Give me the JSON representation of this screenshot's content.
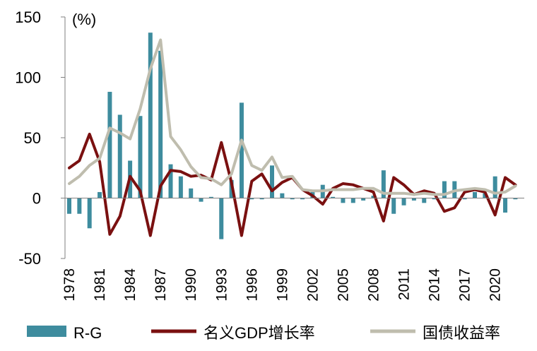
{
  "chart_data": {
    "type": "bar+line",
    "unit_label": "(%)",
    "ylim": [
      -50,
      150
    ],
    "yticks": [
      "150",
      "100",
      "50",
      "0",
      "-50"
    ],
    "ytick_values": [
      150,
      100,
      50,
      0,
      -50
    ],
    "x": [
      1978,
      1979,
      1980,
      1981,
      1982,
      1983,
      1984,
      1985,
      1986,
      1987,
      1988,
      1989,
      1990,
      1991,
      1992,
      1993,
      1994,
      1995,
      1996,
      1997,
      1998,
      1999,
      2000,
      2001,
      2002,
      2003,
      2004,
      2005,
      2006,
      2007,
      2008,
      2009,
      2010,
      2011,
      2012,
      2013,
      2014,
      2015,
      2016,
      2017,
      2018,
      2019,
      2020,
      2021,
      2022
    ],
    "xticks": [
      "1978",
      "1981",
      "1984",
      "1987",
      "1990",
      "1993",
      "1996",
      "1999",
      "2002",
      "2005",
      "2008",
      "2011",
      "2014",
      "2017",
      "2020"
    ],
    "series": [
      {
        "name": "R-G",
        "type": "bar",
        "color": "#3E8C9E",
        "values": [
          -13,
          -13,
          -25,
          5,
          88,
          69,
          31,
          68,
          137,
          122,
          28,
          18,
          8,
          -3,
          1,
          -34,
          15,
          79,
          -1,
          -1,
          27,
          4,
          -1,
          -1,
          5,
          11,
          1,
          -4,
          -4,
          -2,
          2,
          23,
          -13,
          -6,
          -2,
          -4,
          -1,
          14,
          14,
          -1,
          5,
          4,
          18,
          -12,
          -1
        ]
      },
      {
        "name": "名义GDP增长率",
        "type": "line",
        "color": "#7A1010",
        "values": [
          25,
          31,
          53,
          30,
          -30,
          -15,
          18,
          6,
          -31,
          10,
          23,
          22,
          18,
          19,
          15,
          46,
          13,
          -31,
          14,
          20,
          6,
          13,
          17,
          7,
          2,
          -5,
          8,
          12,
          11,
          8,
          5,
          -19,
          17,
          11,
          3,
          6,
          4,
          -11,
          -8,
          5,
          7,
          5,
          -14,
          17,
          11
        ]
      },
      {
        "name": "国债收益率",
        "type": "line",
        "color": "#BFBDAE",
        "values": [
          12,
          18,
          27,
          33,
          58,
          54,
          49,
          74,
          107,
          131,
          51,
          40,
          26,
          17,
          16,
          11,
          20,
          48,
          27,
          23,
          34,
          17,
          18,
          7,
          6,
          6,
          7,
          7,
          7,
          8,
          8,
          4,
          4,
          4,
          3,
          4,
          3,
          3,
          6,
          7,
          8,
          7,
          4,
          5,
          10
        ]
      }
    ]
  }
}
